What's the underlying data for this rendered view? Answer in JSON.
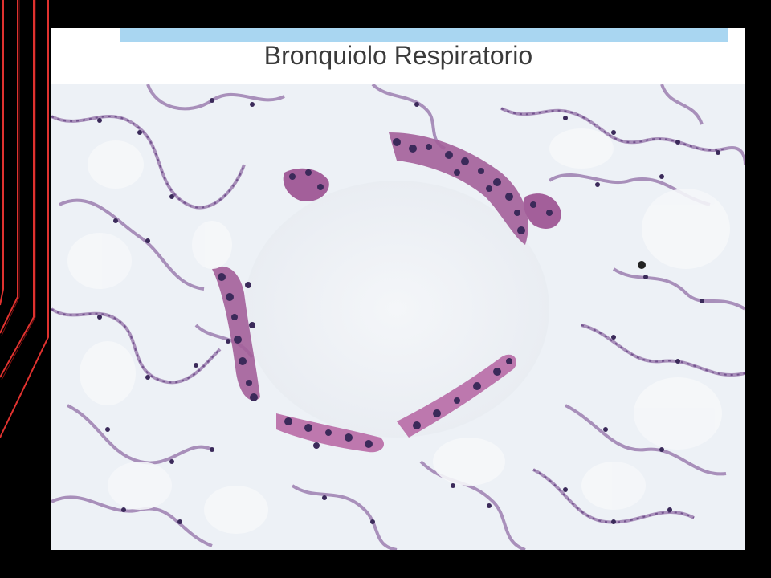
{
  "slide": {
    "title": "Bronquiolo Respiratorio",
    "accent_bar_color": "#a9d6f1",
    "deco_line_color": "#e0322f"
  },
  "image": {
    "subject": "histology-micrograph"
  }
}
